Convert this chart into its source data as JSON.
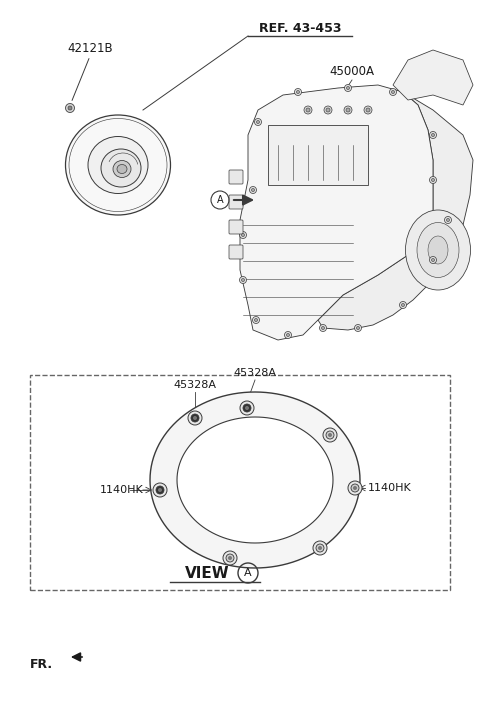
{
  "bg_color": "#ffffff",
  "labels": {
    "ref": "REF. 43-453",
    "part_42121B": "42121B",
    "part_45000A": "45000A",
    "part_45328A_left": "45328A",
    "part_45328A_right": "45328A",
    "part_1140HK_left": "1140HK",
    "part_1140HK_right": "1140HK",
    "view_a": "VIEW",
    "fr": "FR."
  },
  "circle_a_label": "A",
  "line_color": "#3a3a3a",
  "text_color": "#1a1a1a"
}
